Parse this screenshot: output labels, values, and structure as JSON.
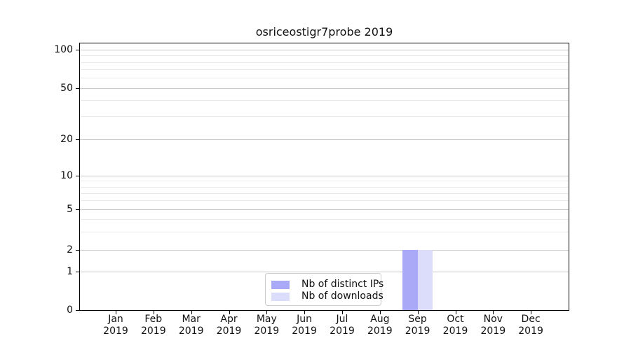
{
  "title": "osriceostigr7probe 2019",
  "chart_data": {
    "type": "bar",
    "title": "osriceostigr7probe 2019",
    "categories": [
      "Jan",
      "Feb",
      "Mar",
      "Apr",
      "May",
      "Jun",
      "Jul",
      "Aug",
      "Sep",
      "Oct",
      "Nov",
      "Dec"
    ],
    "x_tick_second_line": "2019",
    "series": [
      {
        "name": "Nb of distinct IPs",
        "color": "#a9a9f8",
        "values": [
          0,
          0,
          0,
          0,
          0,
          0,
          0,
          0,
          2,
          0,
          0,
          0
        ]
      },
      {
        "name": "Nb of downloads",
        "color": "#dcdcfb",
        "values": [
          0,
          0,
          0,
          0,
          0,
          0,
          0,
          0,
          2,
          0,
          0,
          0
        ]
      }
    ],
    "xlabel": "",
    "ylabel": "",
    "y_scale": "log-above-1-linear-below",
    "y_ticks": [
      0,
      1,
      2,
      5,
      10,
      20,
      50,
      100
    ],
    "y_minor_gridlines": [
      3,
      4,
      6,
      7,
      8,
      9,
      30,
      40,
      60,
      70,
      80,
      90
    ],
    "ylim": [
      0,
      110
    ],
    "grid": "horizontal major and minor",
    "legend_position": "lower center inside plot"
  },
  "legend": {
    "items": [
      {
        "label": "Nb of distinct IPs",
        "color": "#a9a9f8"
      },
      {
        "label": "Nb of downloads",
        "color": "#dcdcfb"
      }
    ]
  },
  "colors": {
    "background": "#ffffff",
    "spine": "#000000",
    "grid_major": "#c9c9c9",
    "grid_minor": "#e9e9e9",
    "text": "#111111"
  }
}
